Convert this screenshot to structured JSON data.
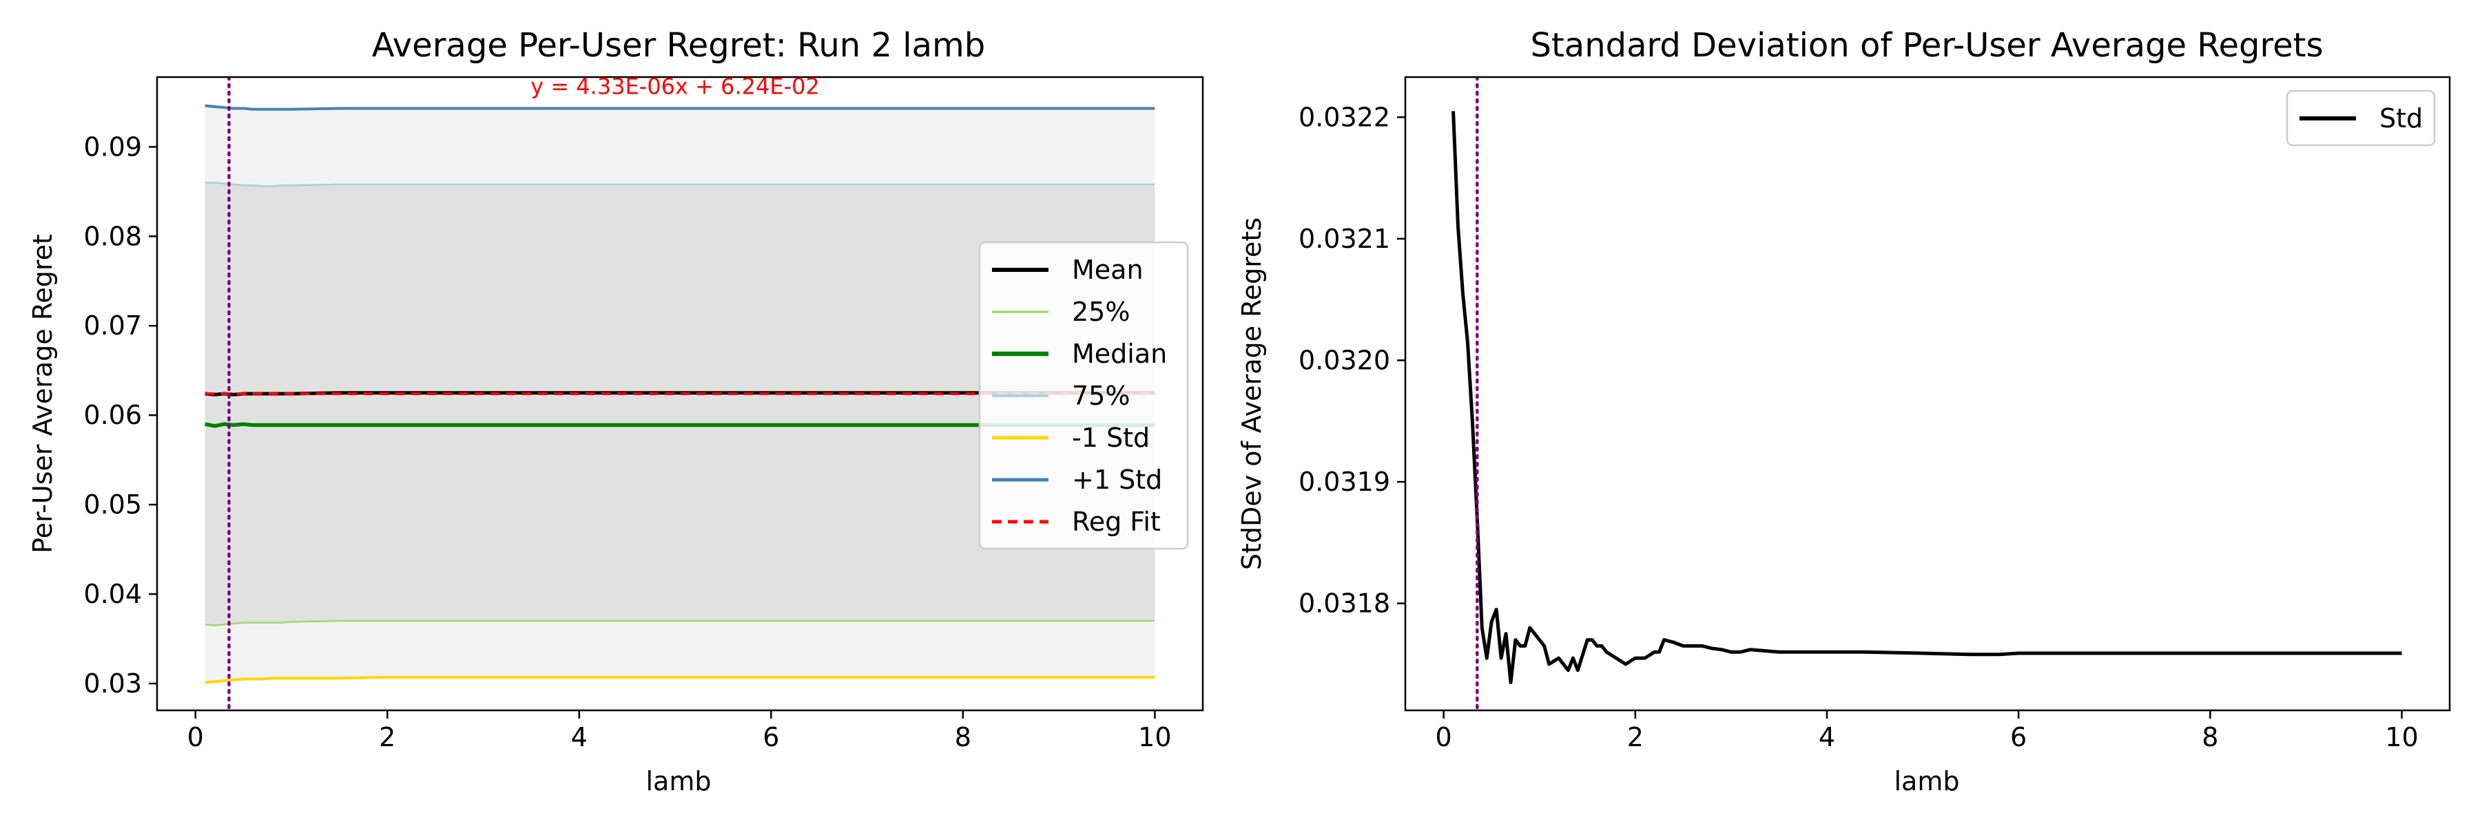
{
  "chart_data": [
    {
      "type": "line",
      "title": "Average Per-User Regret: Run 2 lamb",
      "xlabel": "lamb",
      "ylabel": "Per-User Average Regret",
      "xlim": [
        -0.4,
        10.5
      ],
      "ylim": [
        0.027,
        0.0978
      ],
      "xticks": [
        0,
        2,
        4,
        6,
        8,
        10
      ],
      "yticks": [
        0.03,
        0.04,
        0.05,
        0.06,
        0.07,
        0.08,
        0.09
      ],
      "ytick_labels": [
        "0.03",
        "0.04",
        "0.05",
        "0.06",
        "0.07",
        "0.08",
        "0.09"
      ],
      "grid": false,
      "legend_position": "center-right",
      "vline": {
        "x": 0.35,
        "color": "#800080",
        "style": "dotted"
      },
      "annotation": {
        "text": "y = 4.33E-06x + 6.24E-02",
        "x": 5.0,
        "y": 0.0967,
        "color": "#ff0000"
      },
      "bands": [
        {
          "from": "-1 Std",
          "to": "+1 Std",
          "color": "#cccccc",
          "opacity": 0.25
        },
        {
          "from": "25%",
          "to": "75%",
          "color": "#bbbbbb",
          "opacity": 0.3
        }
      ],
      "x": [
        0.1,
        0.2,
        0.3,
        0.4,
        0.5,
        0.6,
        0.7,
        0.8,
        0.9,
        1.0,
        1.5,
        2.0,
        3.0,
        4.0,
        5.0,
        6.0,
        7.0,
        8.0,
        9.0,
        10.0
      ],
      "series": [
        {
          "name": "+1 Std",
          "color": "#4682b4",
          "width": 4,
          "values": [
            0.0946,
            0.0945,
            0.0944,
            0.0943,
            0.0943,
            0.0942,
            0.0942,
            0.0942,
            0.0942,
            0.0942,
            0.0943,
            0.0943,
            0.0943,
            0.0943,
            0.0943,
            0.0943,
            0.0943,
            0.0943,
            0.0943,
            0.0943
          ]
        },
        {
          "name": "75%",
          "color": "#a6cee3",
          "width": 2.5,
          "values": [
            0.086,
            0.086,
            0.0859,
            0.0858,
            0.0857,
            0.0857,
            0.0856,
            0.0856,
            0.0857,
            0.0857,
            0.0858,
            0.0858,
            0.0858,
            0.0858,
            0.0858,
            0.0858,
            0.0858,
            0.0858,
            0.0858,
            0.0858
          ]
        },
        {
          "name": "Mean",
          "color": "#000000",
          "width": 5,
          "values": [
            0.0624,
            0.0623,
            0.0624,
            0.0623,
            0.0624,
            0.0624,
            0.0624,
            0.0624,
            0.0624,
            0.0624,
            0.0625,
            0.0625,
            0.0625,
            0.0625,
            0.0625,
            0.0625,
            0.0625,
            0.0625,
            0.0625,
            0.0625
          ]
        },
        {
          "name": "Median",
          "color": "#008000",
          "width": 5.5,
          "values": [
            0.059,
            0.0588,
            0.059,
            0.0589,
            0.059,
            0.0589,
            0.0589,
            0.0589,
            0.0589,
            0.0589,
            0.0589,
            0.0589,
            0.0589,
            0.0589,
            0.0589,
            0.0589,
            0.0589,
            0.0589,
            0.0589,
            0.0589
          ]
        },
        {
          "name": "25%",
          "color": "#a1d76a",
          "width": 2.5,
          "values": [
            0.0366,
            0.0365,
            0.0366,
            0.0367,
            0.0368,
            0.0368,
            0.0368,
            0.0368,
            0.0368,
            0.0369,
            0.037,
            0.037,
            0.037,
            0.037,
            0.037,
            0.037,
            0.037,
            0.037,
            0.037,
            0.037
          ]
        },
        {
          "name": "-1 Std",
          "color": "#ffd700",
          "width": 4,
          "values": [
            0.0301,
            0.0302,
            0.0303,
            0.0304,
            0.0305,
            0.0305,
            0.0305,
            0.0306,
            0.0306,
            0.0306,
            0.0306,
            0.0307,
            0.0307,
            0.0307,
            0.0307,
            0.0307,
            0.0307,
            0.0307,
            0.0307,
            0.0307
          ]
        },
        {
          "name": "Reg Fit",
          "color": "#ff0000",
          "width": 4,
          "dash": "14,9",
          "values": [
            0.0624,
            0.0624,
            0.0624,
            0.0624,
            0.0624,
            0.0624,
            0.0624,
            0.0624,
            0.0624,
            0.0624,
            0.0624,
            0.0624,
            0.0624,
            0.0624,
            0.0624,
            0.0624,
            0.0624,
            0.0624,
            0.0624,
            0.0624
          ]
        }
      ],
      "legend": [
        "Mean",
        "25%",
        "Median",
        "75%",
        "-1 Std",
        "+1 Std",
        "Reg Fit"
      ]
    },
    {
      "type": "line",
      "title": "Standard Deviation of Per-User Average Regrets",
      "xlabel": "lamb",
      "ylabel": "StdDev of Average Regrets",
      "xlim": [
        -0.4,
        10.5
      ],
      "ylim": [
        0.031712,
        0.032233
      ],
      "xticks": [
        0,
        2,
        4,
        6,
        8,
        10
      ],
      "yticks": [
        0.0318,
        0.0319,
        0.032,
        0.0321,
        0.0322
      ],
      "ytick_labels": [
        "0.0318",
        "0.0319",
        "0.0320",
        "0.0321",
        "0.0322"
      ],
      "grid": false,
      "legend_position": "upper right",
      "vline": {
        "x": 0.35,
        "color": "#800080",
        "style": "dotted"
      },
      "x": [
        0.1,
        0.15,
        0.2,
        0.25,
        0.3,
        0.35,
        0.4,
        0.45,
        0.5,
        0.55,
        0.6,
        0.65,
        0.7,
        0.75,
        0.8,
        0.85,
        0.9,
        0.95,
        1.0,
        1.05,
        1.1,
        1.2,
        1.3,
        1.35,
        1.4,
        1.5,
        1.55,
        1.6,
        1.65,
        1.7,
        1.8,
        1.9,
        2.0,
        2.1,
        2.2,
        2.25,
        2.3,
        2.4,
        2.5,
        2.7,
        2.8,
        2.9,
        3.0,
        3.1,
        3.2,
        3.5,
        4.0,
        4.2,
        4.3,
        4.4,
        5.0,
        5.5,
        5.8,
        6.0,
        7.0,
        8.0,
        9.0,
        10.0
      ],
      "series": [
        {
          "name": "Std",
          "color": "#000000",
          "width": 5,
          "values": [
            0.032205,
            0.03211,
            0.032055,
            0.032015,
            0.03195,
            0.03187,
            0.03178,
            0.031755,
            0.031785,
            0.031795,
            0.031755,
            0.031775,
            0.031735,
            0.03177,
            0.031765,
            0.031765,
            0.03178,
            0.031775,
            0.03177,
            0.031765,
            0.03175,
            0.031755,
            0.031745,
            0.031755,
            0.031745,
            0.03177,
            0.03177,
            0.031765,
            0.031765,
            0.03176,
            0.031755,
            0.03175,
            0.031755,
            0.031755,
            0.03176,
            0.03176,
            0.03177,
            0.031768,
            0.031765,
            0.031765,
            0.031763,
            0.031762,
            0.03176,
            0.03176,
            0.031762,
            0.03176,
            0.03176,
            0.03176,
            0.03176,
            0.03176,
            0.031759,
            0.031758,
            0.031758,
            0.031759,
            0.031759,
            0.031759,
            0.031759,
            0.031759
          ]
        }
      ],
      "legend": [
        "Std"
      ]
    }
  ]
}
